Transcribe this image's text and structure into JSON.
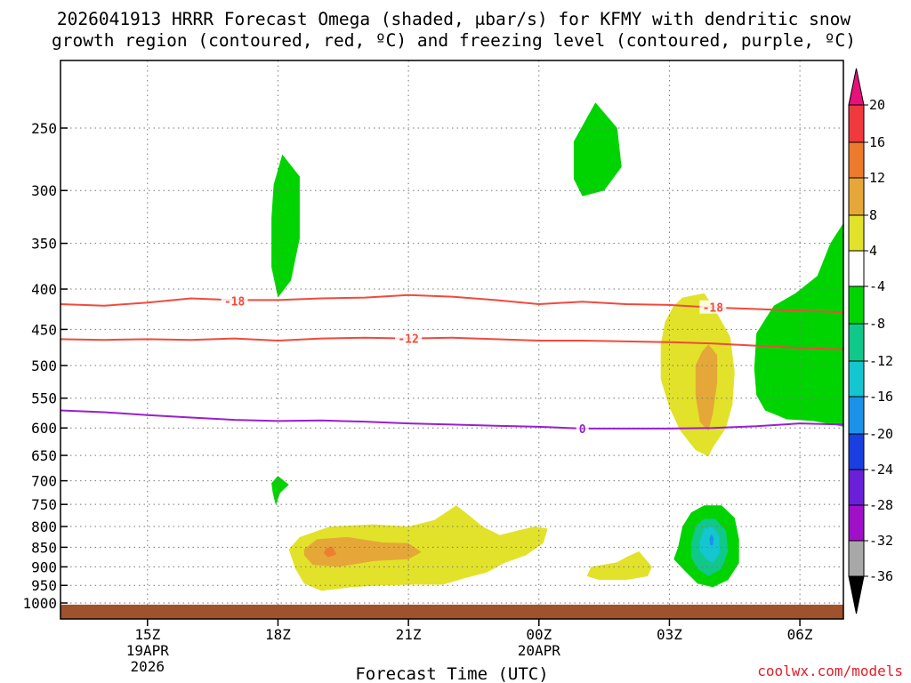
{
  "chart_data": {
    "type": "contour",
    "title_line1": "2026041913 HRRR Forecast Omega (shaded, μbar/s) for KFMY with dendritic snow",
    "title_line2": "growth region (contoured, red, ºC) and freezing level (contoured, purple, ºC)",
    "xlabel": "Forecast Time (UTC)",
    "credit": "coolwx.com/models",
    "xlim": [
      13,
      31
    ],
    "ylim": [
      1020,
      200
    ],
    "x_ticks": [
      {
        "x": 15,
        "label": "15Z",
        "sub1": "19APR",
        "sub2": "2026"
      },
      {
        "x": 18,
        "label": "18Z",
        "sub1": "",
        "sub2": ""
      },
      {
        "x": 21,
        "label": "21Z",
        "sub1": "",
        "sub2": ""
      },
      {
        "x": 24,
        "label": "00Z",
        "sub1": "20APR",
        "sub2": ""
      },
      {
        "x": 27,
        "label": "03Z",
        "sub1": "",
        "sub2": ""
      },
      {
        "x": 30,
        "label": "06Z",
        "sub1": "",
        "sub2": ""
      }
    ],
    "y_ticks": [
      {
        "p": 250,
        "label": "250"
      },
      {
        "p": 300,
        "label": "300"
      },
      {
        "p": 350,
        "label": "350"
      },
      {
        "p": 400,
        "label": "400"
      },
      {
        "p": 450,
        "label": "450"
      },
      {
        "p": 500,
        "label": "500"
      },
      {
        "p": 550,
        "label": "550"
      },
      {
        "p": 600,
        "label": "600"
      },
      {
        "p": 650,
        "label": "650"
      },
      {
        "p": 700,
        "label": "700"
      },
      {
        "p": 750,
        "label": "750"
      },
      {
        "p": 800,
        "label": "800"
      },
      {
        "p": 850,
        "label": "850"
      },
      {
        "p": 900,
        "label": "900"
      },
      {
        "p": 950,
        "label": "950"
      },
      {
        "p": 1000,
        "label": "1000"
      }
    ],
    "ground_level_p": 1005,
    "colors": {
      "ground": "#a0522d",
      "isotherm": "#f04a3c",
      "freezing": "#9a1fce",
      "grid": "#777777"
    },
    "shaded_regions": [
      {
        "name": "green-upper-18z",
        "color": "#00d400",
        "pts": [
          [
            17.9,
            295
          ],
          [
            18.1,
            270
          ],
          [
            18.5,
            288
          ],
          [
            18.5,
            345
          ],
          [
            18.3,
            390
          ],
          [
            18.0,
            410
          ],
          [
            17.85,
            375
          ],
          [
            17.85,
            325
          ]
        ]
      },
      {
        "name": "green-upper-01z",
        "color": "#00d400",
        "pts": [
          [
            24.8,
            260
          ],
          [
            25.3,
            232
          ],
          [
            25.8,
            250
          ],
          [
            25.9,
            280
          ],
          [
            25.5,
            300
          ],
          [
            25.0,
            305
          ],
          [
            24.8,
            290
          ]
        ]
      },
      {
        "name": "green-right",
        "color": "#00d400",
        "pts": [
          [
            31.0,
            330
          ],
          [
            30.7,
            350
          ],
          [
            30.4,
            385
          ],
          [
            29.9,
            405
          ],
          [
            29.4,
            420
          ],
          [
            29.0,
            455
          ],
          [
            28.95,
            505
          ],
          [
            29.0,
            545
          ],
          [
            29.2,
            570
          ],
          [
            29.7,
            585
          ],
          [
            30.3,
            588
          ],
          [
            30.7,
            593
          ],
          [
            31.0,
            598
          ]
        ]
      },
      {
        "name": "yellow-right-upper",
        "color": "#e2e22a",
        "pts": [
          [
            27.3,
            410
          ],
          [
            27.8,
            405
          ],
          [
            28.0,
            420
          ],
          [
            28.4,
            460
          ],
          [
            28.5,
            510
          ],
          [
            28.45,
            560
          ],
          [
            28.3,
            600
          ],
          [
            28.0,
            635
          ],
          [
            27.9,
            652
          ],
          [
            27.6,
            640
          ],
          [
            27.25,
            605
          ],
          [
            27.0,
            565
          ],
          [
            26.8,
            520
          ],
          [
            26.8,
            470
          ],
          [
            26.9,
            440
          ],
          [
            27.1,
            420
          ]
        ]
      },
      {
        "name": "orange-right-upper",
        "color": "#e5a838",
        "pts": [
          [
            27.9,
            470
          ],
          [
            28.1,
            485
          ],
          [
            28.1,
            525
          ],
          [
            28.0,
            575
          ],
          [
            27.9,
            605
          ],
          [
            27.7,
            590
          ],
          [
            27.6,
            545
          ],
          [
            27.6,
            500
          ],
          [
            27.75,
            480
          ]
        ]
      },
      {
        "name": "yellow-lower",
        "color": "#e2e22a",
        "pts": [
          [
            18.25,
            855
          ],
          [
            18.5,
            825
          ],
          [
            19.2,
            800
          ],
          [
            20.2,
            795
          ],
          [
            21.0,
            800
          ],
          [
            21.6,
            785
          ],
          [
            22.1,
            752
          ],
          [
            22.4,
            775
          ],
          [
            22.7,
            800
          ],
          [
            23.1,
            820
          ],
          [
            23.5,
            810
          ],
          [
            23.9,
            800
          ],
          [
            24.2,
            805
          ],
          [
            24.1,
            840
          ],
          [
            23.7,
            870
          ],
          [
            23.2,
            890
          ],
          [
            22.8,
            915
          ],
          [
            22.3,
            930
          ],
          [
            21.8,
            948
          ],
          [
            21.2,
            948
          ],
          [
            20.4,
            950
          ],
          [
            19.7,
            955
          ],
          [
            19.0,
            965
          ],
          [
            18.6,
            945
          ],
          [
            18.4,
            905
          ]
        ]
      },
      {
        "name": "orange-lower",
        "color": "#e5a838",
        "pts": [
          [
            18.6,
            855
          ],
          [
            18.9,
            830
          ],
          [
            19.6,
            825
          ],
          [
            20.4,
            838
          ],
          [
            21.0,
            840
          ],
          [
            21.3,
            862
          ],
          [
            21.0,
            880
          ],
          [
            20.2,
            885
          ],
          [
            19.4,
            900
          ],
          [
            18.8,
            895
          ],
          [
            18.6,
            870
          ]
        ]
      },
      {
        "name": "darkorange-lower",
        "color": "#ec8030",
        "pts": [
          [
            19.1,
            853
          ],
          [
            19.25,
            848
          ],
          [
            19.35,
            868
          ],
          [
            19.15,
            875
          ],
          [
            19.05,
            865
          ]
        ]
      },
      {
        "name": "yellow-lower-right",
        "color": "#e2e22a",
        "pts": [
          [
            25.2,
            900
          ],
          [
            25.8,
            888
          ],
          [
            26.0,
            875
          ],
          [
            26.3,
            860
          ],
          [
            26.6,
            900
          ],
          [
            26.5,
            925
          ],
          [
            26.0,
            935
          ],
          [
            25.4,
            935
          ],
          [
            25.1,
            925
          ]
        ]
      },
      {
        "name": "green-lower-right",
        "color": "#00d400",
        "pts": [
          [
            27.2,
            850
          ],
          [
            27.3,
            800
          ],
          [
            27.5,
            768
          ],
          [
            27.8,
            752
          ],
          [
            28.2,
            752
          ],
          [
            28.5,
            780
          ],
          [
            28.6,
            830
          ],
          [
            28.6,
            890
          ],
          [
            28.35,
            935
          ],
          [
            28.0,
            955
          ],
          [
            27.65,
            945
          ],
          [
            27.35,
            910
          ],
          [
            27.1,
            880
          ]
        ]
      },
      {
        "name": "teal-lower-right",
        "color": "#10c88a",
        "pts": [
          [
            27.5,
            840
          ],
          [
            27.6,
            800
          ],
          [
            27.8,
            782
          ],
          [
            28.05,
            782
          ],
          [
            28.3,
            810
          ],
          [
            28.35,
            860
          ],
          [
            28.2,
            905
          ],
          [
            27.9,
            925
          ],
          [
            27.65,
            905
          ],
          [
            27.5,
            875
          ]
        ]
      },
      {
        "name": "cyan-lower-right",
        "color": "#14c6d0",
        "pts": [
          [
            27.7,
            835
          ],
          [
            27.8,
            805
          ],
          [
            28.0,
            800
          ],
          [
            28.15,
            825
          ],
          [
            28.15,
            865
          ],
          [
            28.0,
            890
          ],
          [
            27.85,
            880
          ],
          [
            27.7,
            860
          ]
        ]
      },
      {
        "name": "blue-lower-right",
        "color": "#1a92e8",
        "pts": [
          [
            27.92,
            828
          ],
          [
            27.97,
            818
          ],
          [
            28.02,
            828
          ],
          [
            28.0,
            845
          ],
          [
            27.94,
            845
          ]
        ]
      },
      {
        "name": "green-small-700",
        "color": "#00d400",
        "pts": [
          [
            17.85,
            705
          ],
          [
            18.0,
            690
          ],
          [
            18.25,
            708
          ],
          [
            18.05,
            725
          ],
          [
            17.95,
            752
          ],
          [
            17.88,
            725
          ]
        ]
      }
    ],
    "contours": [
      {
        "name": "isotherm-minus18",
        "value": -18,
        "label": "-18",
        "color": "#f04a3c",
        "points": [
          [
            13,
            418
          ],
          [
            14,
            420
          ],
          [
            15,
            416
          ],
          [
            16,
            411
          ],
          [
            17,
            413
          ],
          [
            18,
            413
          ],
          [
            19,
            411
          ],
          [
            20,
            410
          ],
          [
            21,
            407
          ],
          [
            22,
            409
          ],
          [
            23,
            413
          ],
          [
            24,
            418
          ],
          [
            25,
            415
          ],
          [
            26,
            418
          ],
          [
            27,
            419
          ],
          [
            28,
            422
          ],
          [
            29,
            424
          ],
          [
            30,
            426
          ],
          [
            31,
            428
          ]
        ],
        "label_positions": [
          [
            17,
            414
          ],
          [
            28,
            422
          ]
        ]
      },
      {
        "name": "isotherm-minus12",
        "value": -12,
        "label": "-12",
        "color": "#f04a3c",
        "points": [
          [
            13,
            463
          ],
          [
            14,
            464
          ],
          [
            15,
            463
          ],
          [
            16,
            464
          ],
          [
            17,
            462
          ],
          [
            18,
            465
          ],
          [
            19,
            462
          ],
          [
            20,
            461
          ],
          [
            21,
            462
          ],
          [
            22,
            461
          ],
          [
            23,
            463
          ],
          [
            24,
            465
          ],
          [
            25,
            465
          ],
          [
            26,
            466
          ],
          [
            27,
            467
          ],
          [
            28,
            469
          ],
          [
            29,
            472
          ],
          [
            30,
            475
          ],
          [
            31,
            477
          ]
        ],
        "label_positions": [
          [
            21,
            462
          ]
        ]
      },
      {
        "name": "freezing-level",
        "value": 0,
        "label": "0",
        "color": "#9a1fce",
        "points": [
          [
            13,
            570
          ],
          [
            14,
            573
          ],
          [
            15,
            578
          ],
          [
            16,
            582
          ],
          [
            17,
            586
          ],
          [
            18,
            588
          ],
          [
            19,
            587
          ],
          [
            20,
            589
          ],
          [
            21,
            592
          ],
          [
            22,
            594
          ],
          [
            23,
            596
          ],
          [
            24,
            598
          ],
          [
            25,
            601
          ],
          [
            26,
            601
          ],
          [
            27,
            601
          ],
          [
            28,
            600
          ],
          [
            29,
            597
          ],
          [
            30,
            592
          ],
          [
            31,
            594
          ]
        ],
        "label_positions": [
          [
            25.0,
            601
          ]
        ]
      }
    ],
    "colorbar": {
      "top_color": "#e8107a",
      "bottom_color": "#000000",
      "labels": [
        "20",
        "16",
        "12",
        "8",
        "4",
        "-4",
        "-8",
        "-12",
        "-16",
        "-20",
        "-24",
        "-28",
        "-32",
        "-36"
      ],
      "colors": [
        "#f0393d",
        "#ec7b2e",
        "#e5a838",
        "#e2e22a",
        "#ffffff",
        "#00d400",
        "#10c88a",
        "#14c6d0",
        "#1a92e8",
        "#1a3fe0",
        "#6a20d8",
        "#a010c8",
        "#a8a8a8"
      ]
    }
  }
}
